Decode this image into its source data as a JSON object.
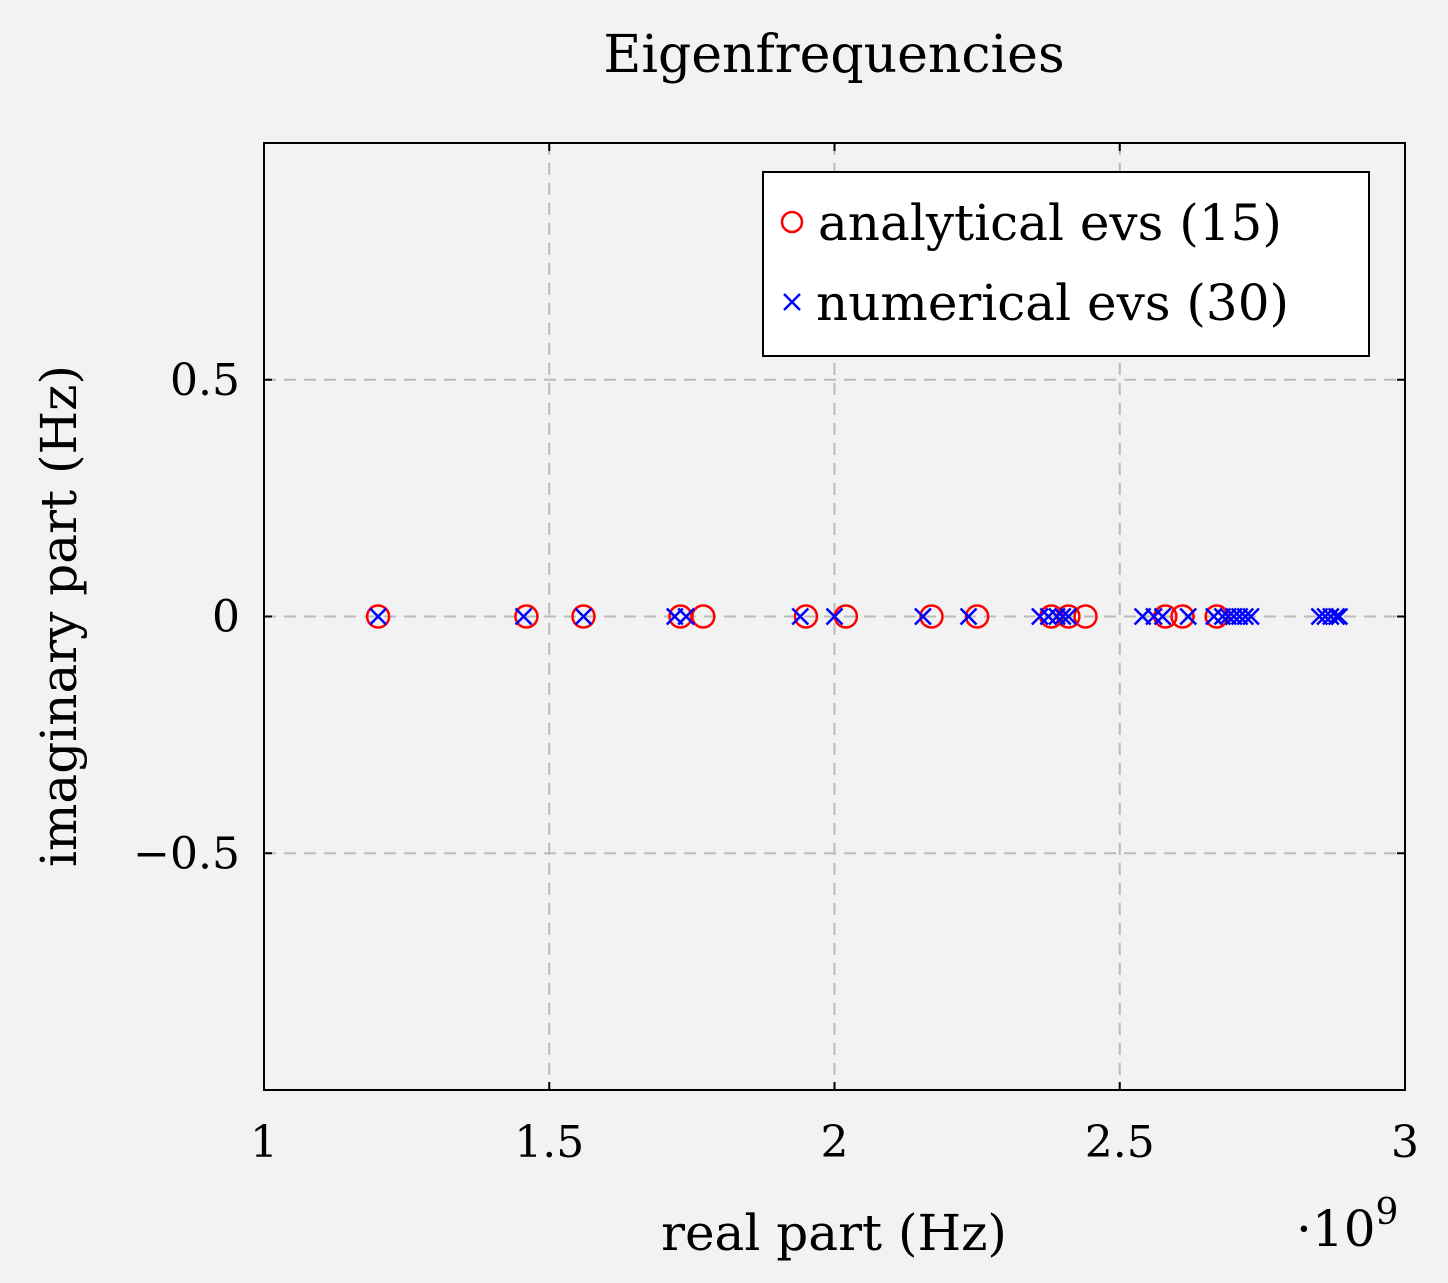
{
  "chart_data": {
    "type": "scatter",
    "title": "Eigenfrequencies",
    "xlabel": "real part (Hz)",
    "ylabel": "imaginary part (Hz)",
    "x_multiplier_label": "·10",
    "x_multiplier_exp": "9",
    "xlim": [
      1.0,
      3.0
    ],
    "ylim": [
      -1.0,
      1.0
    ],
    "xticks": [
      1.0,
      1.5,
      2.0,
      2.5,
      3.0
    ],
    "xtick_labels": [
      "1",
      "1.5",
      "2",
      "2.5",
      "3"
    ],
    "yticks": [
      -0.5,
      0,
      0.5
    ],
    "ytick_labels": [
      "−0.5",
      "0",
      "0.5"
    ],
    "grid": true,
    "legend_position": "top-right",
    "series": [
      {
        "name": "analytical evs (15)",
        "marker": "circle",
        "color": "#ff0000",
        "x": [
          1.2,
          1.46,
          1.56,
          1.73,
          1.77,
          1.95,
          2.02,
          2.17,
          2.25,
          2.38,
          2.41,
          2.44,
          2.58,
          2.61,
          2.67
        ],
        "y": [
          0,
          0,
          0,
          0,
          0,
          0,
          0,
          0,
          0,
          0,
          0,
          0,
          0,
          0,
          0
        ]
      },
      {
        "name": "numerical evs (30)",
        "marker": "cross",
        "color": "#0000ff",
        "x": [
          1.2,
          1.455,
          1.56,
          1.72,
          1.74,
          1.94,
          2.0,
          2.155,
          2.235,
          2.36,
          2.375,
          2.39,
          2.4,
          2.41,
          2.54,
          2.56,
          2.575,
          2.62,
          2.665,
          2.68,
          2.69,
          2.7,
          2.71,
          2.72,
          2.73,
          2.85,
          2.86,
          2.87,
          2.88,
          2.885
        ],
        "y": [
          0,
          0,
          0,
          0,
          0,
          0,
          0,
          0,
          0,
          0,
          0,
          0,
          0,
          0,
          0,
          0,
          0,
          0,
          0,
          0,
          0,
          0,
          0,
          0,
          0,
          0,
          0,
          0,
          0,
          0
        ]
      }
    ]
  }
}
